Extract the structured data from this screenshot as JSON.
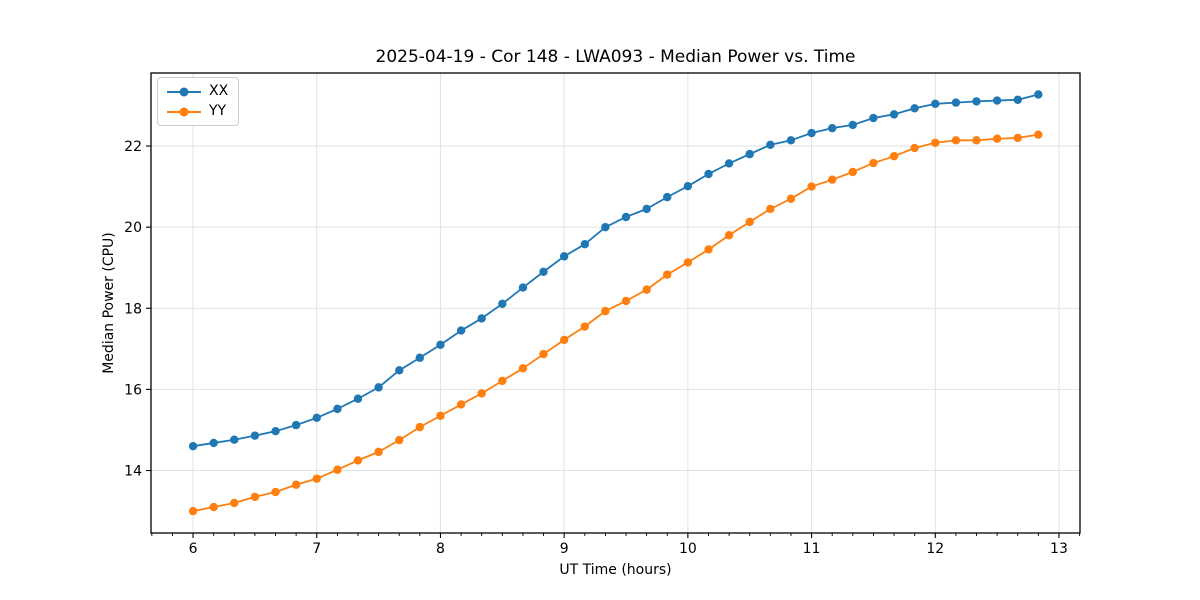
{
  "chart_data": {
    "type": "line",
    "title": "2025-04-19 - Cor 148 - LWA093 - Median Power vs. Time",
    "xlabel": "UT Time (hours)",
    "ylabel": "Median Power (CPU)",
    "xlim": [
      5.66,
      13.17
    ],
    "ylim": [
      12.46,
      23.8
    ],
    "xticks": [
      6,
      7,
      8,
      9,
      10,
      11,
      12,
      13
    ],
    "yticks": [
      14,
      16,
      18,
      20,
      22
    ],
    "x_minor_step": 0.166667,
    "grid": true,
    "grid_color": "#e2e2e2",
    "spine_color": "#000000",
    "legend_position": "upper-left",
    "x": [
      6.0,
      6.167,
      6.333,
      6.5,
      6.667,
      6.833,
      7.0,
      7.167,
      7.333,
      7.5,
      7.667,
      7.833,
      8.0,
      8.167,
      8.333,
      8.5,
      8.667,
      8.833,
      9.0,
      9.167,
      9.333,
      9.5,
      9.667,
      9.833,
      10.0,
      10.167,
      10.333,
      10.5,
      10.667,
      10.833,
      11.0,
      11.167,
      11.333,
      11.5,
      11.667,
      11.833,
      12.0,
      12.167,
      12.333,
      12.5,
      12.667,
      12.833
    ],
    "series": [
      {
        "name": "XX",
        "color": "#1f77b4",
        "values": [
          14.6,
          14.68,
          14.76,
          14.86,
          14.97,
          15.12,
          15.3,
          15.52,
          15.77,
          16.05,
          16.47,
          16.78,
          17.1,
          17.45,
          17.75,
          18.11,
          18.51,
          18.9,
          19.28,
          19.58,
          20.0,
          20.25,
          20.45,
          20.74,
          21.01,
          21.31,
          21.57,
          21.8,
          22.03,
          22.14,
          22.32,
          22.44,
          22.52,
          22.69,
          22.78,
          22.93,
          23.04,
          23.07,
          23.1,
          23.12,
          23.14,
          23.27
        ]
      },
      {
        "name": "YY",
        "color": "#ff7f0e",
        "values": [
          13.0,
          13.1,
          13.2,
          13.35,
          13.47,
          13.65,
          13.8,
          14.02,
          14.25,
          14.46,
          14.75,
          15.07,
          15.35,
          15.63,
          15.9,
          16.21,
          16.52,
          16.87,
          17.22,
          17.55,
          17.93,
          18.18,
          18.46,
          18.83,
          19.13,
          19.45,
          19.8,
          20.13,
          20.45,
          20.7,
          21.0,
          21.17,
          21.36,
          21.58,
          21.75,
          21.95,
          22.08,
          22.14,
          22.14,
          22.18,
          22.2,
          22.28
        ]
      }
    ]
  }
}
